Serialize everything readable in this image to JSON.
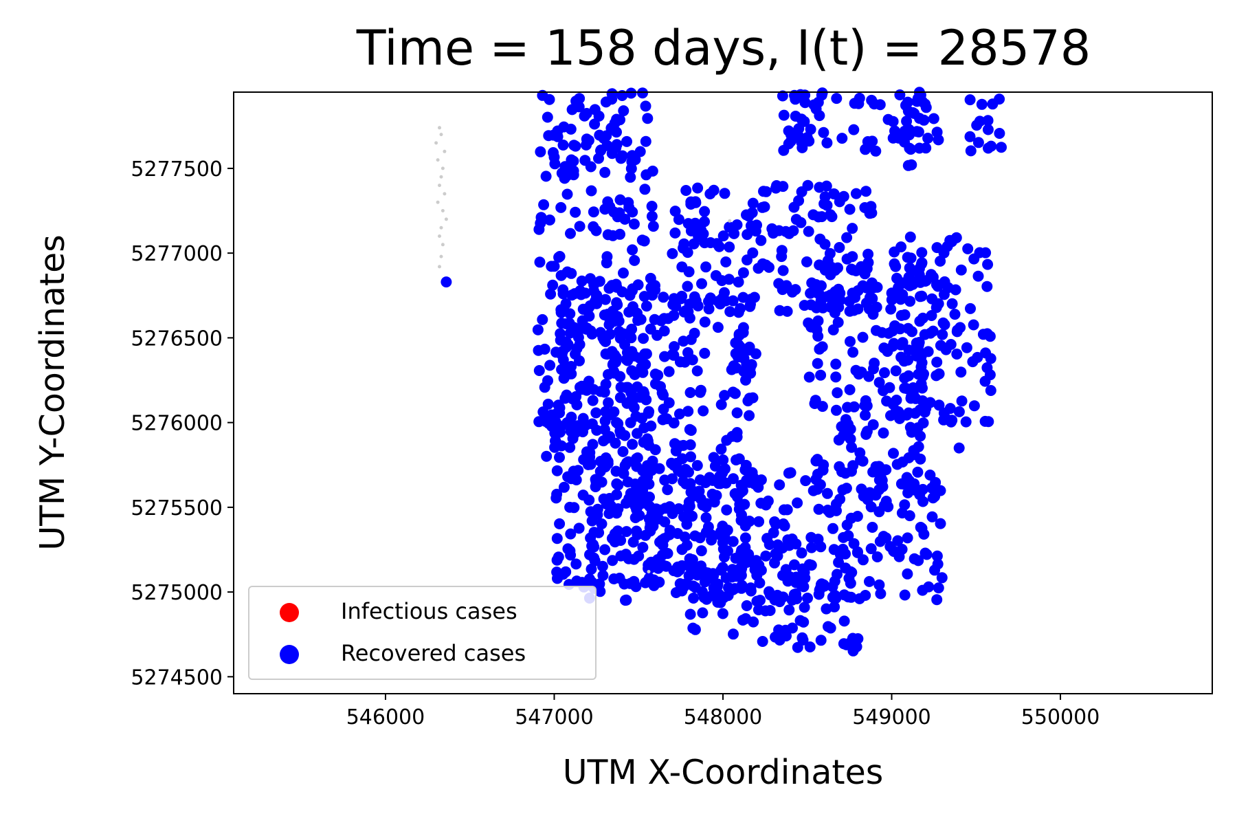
{
  "chart_data": {
    "type": "scatter",
    "title": "Time = 158 days, I(t) = 28578",
    "xlabel": "UTM X-Coordinates",
    "ylabel": "UTM Y-Coordinates",
    "xlim": [
      545100,
      550900
    ],
    "ylim": [
      5274400,
      5277950
    ],
    "xticks": [
      546000,
      547000,
      548000,
      549000,
      550000
    ],
    "yticks": [
      5274500,
      5275000,
      5275500,
      5276000,
      5276500,
      5277000,
      5277500
    ],
    "grid": false,
    "legend": {
      "placement": "lower-left",
      "entries": [
        {
          "label": "Infectious cases",
          "color": "#ff0000"
        },
        {
          "label": "Recovered cases",
          "color": "#0000ff"
        }
      ]
    },
    "series": [
      {
        "name": "Infectious cases",
        "color": "#ff0000",
        "points": []
      },
      {
        "name": "Recovered cases",
        "color": "#0000ff",
        "regions": [
          {
            "x": [
              546900,
              547600
            ],
            "y": [
              5275700,
              5277950
            ]
          },
          {
            "x": [
              547000,
              548200
            ],
            "y": [
              5275000,
              5276800
            ]
          },
          {
            "x": [
              547200,
              549300
            ],
            "y": [
              5274950,
              5275750
            ]
          },
          {
            "x": [
              547700,
              548900
            ],
            "y": [
              5276650,
              5277400
            ]
          },
          {
            "x": [
              548500,
              549200
            ],
            "y": [
              5275600,
              5276950
            ]
          },
          {
            "x": [
              547800,
              548800
            ],
            "y": [
              5274650,
              5275150
            ]
          },
          {
            "x": [
              549000,
              549600
            ],
            "y": [
              5276000,
              5277100
            ]
          },
          {
            "x": [
              548300,
              549300
            ],
            "y": [
              5277600,
              5277950
            ]
          },
          {
            "x": [
              549000,
              549250
            ],
            "y": [
              5277500,
              5277950
            ]
          },
          {
            "x": [
              549450,
              549650
            ],
            "y": [
              5277550,
              5277950
            ]
          }
        ],
        "points": [
          [
            546360,
            5276830
          ],
          [
            547080,
            5275680
          ],
          [
            547300,
            5275250
          ],
          [
            547450,
            5275050
          ],
          [
            549400,
            5275850
          ],
          [
            548300,
            5275350
          ]
        ]
      },
      {
        "name": "",
        "color": "#cccccc",
        "points": [
          [
            546320,
            5277740
          ],
          [
            546330,
            5277700
          ],
          [
            546300,
            5277650
          ],
          [
            546350,
            5277600
          ],
          [
            546310,
            5277550
          ],
          [
            546340,
            5277500
          ],
          [
            546330,
            5277450
          ],
          [
            546320,
            5277400
          ],
          [
            546350,
            5277350
          ],
          [
            546310,
            5277300
          ],
          [
            546340,
            5277250
          ],
          [
            546360,
            5277200
          ],
          [
            546330,
            5277150
          ],
          [
            546320,
            5277100
          ],
          [
            546340,
            5277050
          ],
          [
            546330,
            5276980
          ],
          [
            546320,
            5276920
          ],
          [
            548040,
            5277190
          ],
          [
            547560,
            5275120
          ]
        ]
      }
    ]
  }
}
